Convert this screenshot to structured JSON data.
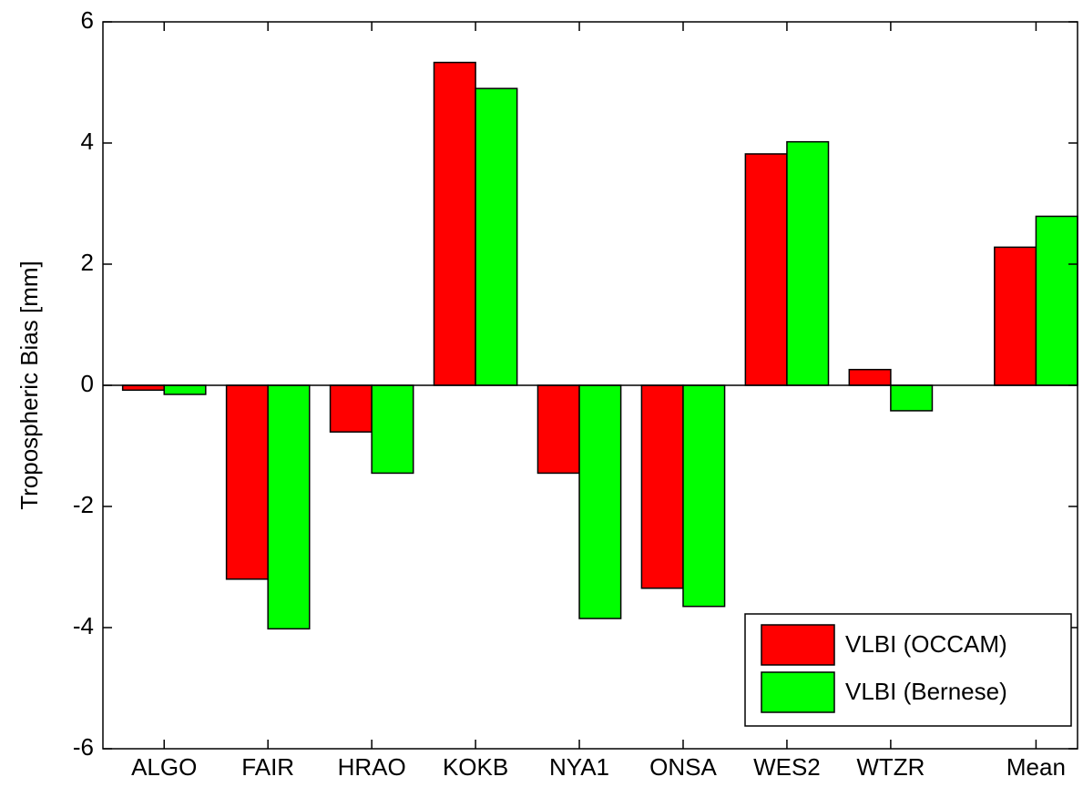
{
  "chart_data": {
    "type": "bar",
    "ylabel": "Tropospheric Bias [mm]",
    "x": [
      1,
      2,
      3,
      4,
      5,
      6,
      7,
      8,
      9.4
    ],
    "xlim": [
      0.41,
      9.8
    ],
    "xticks": [
      {
        "value": 1,
        "label": "ALGO"
      },
      {
        "value": 2,
        "label": "FAIR"
      },
      {
        "value": 3,
        "label": "HRAO"
      },
      {
        "value": 4,
        "label": "KOKB"
      },
      {
        "value": 5,
        "label": "NYA1"
      },
      {
        "value": 6,
        "label": "ONSA"
      },
      {
        "value": 7,
        "label": "WES2"
      },
      {
        "value": 8,
        "label": "WTZR"
      },
      {
        "value": 9.4,
        "label": "Mean"
      }
    ],
    "ylim": [
      -6,
      6
    ],
    "yticks": [
      -6,
      -4,
      -2,
      0,
      2,
      4,
      6
    ],
    "grid": false,
    "legend": "lower right",
    "series": [
      {
        "name": "VLBI (OCCAM)",
        "color": "#ff0000",
        "values": [
          -0.08,
          -3.2,
          -0.77,
          5.33,
          -1.45,
          -3.35,
          3.82,
          0.26,
          2.28
        ]
      },
      {
        "name": "VLBI (Bernese)",
        "color": "#00ff00",
        "values": [
          -0.15,
          -4.02,
          -1.45,
          4.9,
          -3.85,
          -3.65,
          4.02,
          -0.42,
          2.79
        ]
      }
    ]
  }
}
